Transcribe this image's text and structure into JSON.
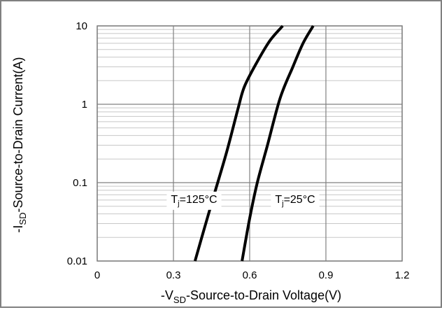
{
  "chart_data": {
    "type": "line",
    "title": "",
    "xlabel": {
      "pre": "-V",
      "sub": "SD",
      "post": "-Source-to-Drain Voltage(V)"
    },
    "ylabel": {
      "pre": "-I",
      "sub": "SD",
      "post": "-Source-to-Drain Current(A)"
    },
    "xlim": [
      0,
      1.2
    ],
    "ylim": [
      0.01,
      10
    ],
    "yscale": "log",
    "grid": true,
    "x_ticks": [
      {
        "value": 0,
        "label": "0"
      },
      {
        "value": 0.3,
        "label": "0.3"
      },
      {
        "value": 0.6,
        "label": "0.6"
      },
      {
        "value": 0.9,
        "label": "0.9"
      },
      {
        "value": 1.2,
        "label": "1.2"
      }
    ],
    "y_ticks": [
      {
        "value": 0.01,
        "label": "0.01"
      },
      {
        "value": 0.1,
        "label": "0.1"
      },
      {
        "value": 1,
        "label": "1"
      },
      {
        "value": 10,
        "label": "10"
      }
    ],
    "series": [
      {
        "label": {
          "pre": "T",
          "sub": "j",
          "post": "=125°C"
        },
        "label_at": {
          "x": 0.29,
          "y": 0.0625
        },
        "color": "#000000",
        "points": [
          {
            "x": 0.385,
            "y": 0.01
          },
          {
            "x": 0.42,
            "y": 0.025
          },
          {
            "x": 0.46,
            "y": 0.07
          },
          {
            "x": 0.51,
            "y": 0.25
          },
          {
            "x": 0.555,
            "y": 0.9
          },
          {
            "x": 0.58,
            "y": 1.7
          },
          {
            "x": 0.63,
            "y": 3.5
          },
          {
            "x": 0.68,
            "y": 6.5
          },
          {
            "x": 0.73,
            "y": 10
          }
        ]
      },
      {
        "label": {
          "pre": "T",
          "sub": "j",
          "post": "=25°C"
        },
        "label_at": {
          "x": 0.7,
          "y": 0.0625
        },
        "color": "#000000",
        "points": [
          {
            "x": 0.57,
            "y": 0.01
          },
          {
            "x": 0.6,
            "y": 0.035
          },
          {
            "x": 0.63,
            "y": 0.1
          },
          {
            "x": 0.67,
            "y": 0.3
          },
          {
            "x": 0.72,
            "y": 1.2
          },
          {
            "x": 0.77,
            "y": 3.0
          },
          {
            "x": 0.81,
            "y": 6.0
          },
          {
            "x": 0.85,
            "y": 10
          }
        ]
      }
    ]
  }
}
